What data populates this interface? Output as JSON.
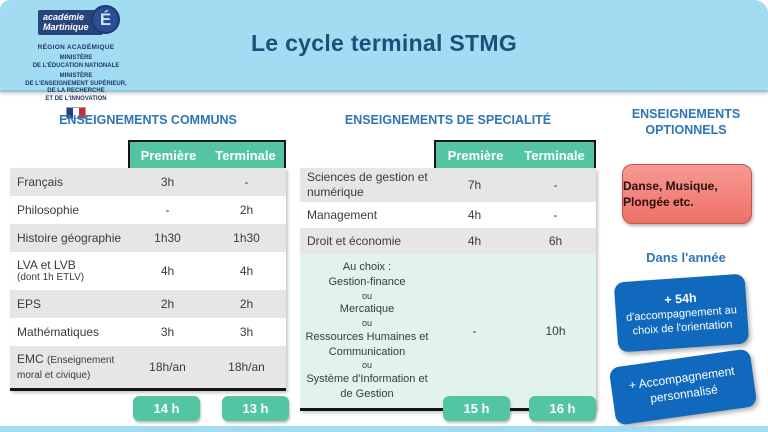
{
  "banner": {
    "title": "Le cycle terminal STMG",
    "logo": {
      "academy": "académie\nMartinique",
      "emblem_letter": "É",
      "region": "RÉGION ACADÉMIQUE",
      "lines": [
        "MINISTÈRE",
        "DE L'ÉDUCATION NATIONALE",
        "MINISTÈRE",
        "DE L'ENSEIGNEMENT SUPÉRIEUR,",
        "DE LA RECHERCHE",
        "ET DE L'INNOVATION"
      ]
    }
  },
  "commons": {
    "heading": "ENSEIGNEMENTS COMMUNS",
    "columns": [
      "Première",
      "Terminale"
    ],
    "rows": [
      {
        "subject": "Français",
        "premiere": "3h",
        "terminale": "-"
      },
      {
        "subject": "Philosophie",
        "premiere": "-",
        "terminale": "2h"
      },
      {
        "subject": "Histoire géographie",
        "premiere": "1h30",
        "terminale": "1h30"
      },
      {
        "subject": "LVA et LVB",
        "note": "(dont 1h ETLV)",
        "premiere": "4h",
        "terminale": "4h"
      },
      {
        "subject": "EPS",
        "premiere": "2h",
        "terminale": "2h"
      },
      {
        "subject": "Mathématiques",
        "premiere": "3h",
        "terminale": "3h"
      },
      {
        "subject": "EMC",
        "note": "(Enseignement moral et civique)",
        "premiere": "18h/an",
        "terminale": "18h/an"
      }
    ],
    "totals": [
      "14 h",
      "13 h"
    ]
  },
  "specialites": {
    "heading": "ENSEIGNEMENTS DE SPECIALITÉ",
    "columns": [
      "Première",
      "Terminale"
    ],
    "rows": [
      {
        "subject": "Sciences de gestion et numérique",
        "premiere": "7h",
        "terminale": "-"
      },
      {
        "subject": "Management",
        "premiere": "4h",
        "terminale": "-"
      },
      {
        "subject": "Droit et économie",
        "premiere": "4h",
        "terminale": "6h"
      }
    ],
    "choice": {
      "lines": [
        "Au choix :",
        "Gestion-finance",
        "ou",
        "Mercatique",
        "ou",
        "Ressources Humaines et Communication",
        "ou",
        "Système d'Information et de Gestion"
      ],
      "premiere": "-",
      "terminale": "10h"
    },
    "totals": [
      "15 h",
      "16 h"
    ]
  },
  "optionnels": {
    "heading": "ENSEIGNEMENTS OPTIONNELS",
    "red_box": "Danse, Musique, Plongée etc.",
    "year_heading": "Dans l'année",
    "box_54": {
      "headline": "+ 54h",
      "body": "d'accompagnement au choix de l'orientation"
    },
    "box_perso": "+ Accompagnement personnalisé"
  },
  "colors": {
    "banner_blue": "#A2DCF3",
    "title_navy": "#1F4E79",
    "heading_blue": "#2E75B6",
    "table_green": "#53C5A2",
    "row_gray": "#E7E6E6",
    "mint": "#E1F3EA",
    "red_box": "#EE7168",
    "blue_box": "#1169BE"
  }
}
